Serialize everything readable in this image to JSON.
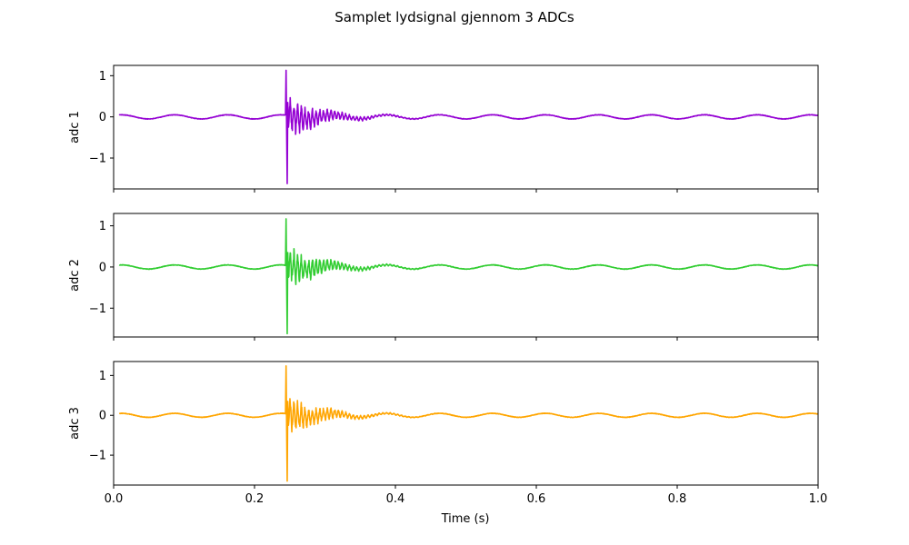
{
  "chart_data": {
    "type": "line",
    "title": "Samplet lydsignal gjennom 3 ADCs",
    "xlabel": "Time (s)",
    "xlim": [
      0.0,
      1.0
    ],
    "xticks": [
      0.0,
      0.2,
      0.4,
      0.6,
      0.8,
      1.0
    ],
    "xtick_labels": [
      "0.0",
      "0.2",
      "0.4",
      "0.6",
      "0.8",
      "1.0"
    ],
    "signal_shape": {
      "start_time": 0.008,
      "baseline_frequency_hz": 13.3,
      "baseline_amplitude": 0.05,
      "transient_time": 0.244,
      "transient_decay_s": 0.045,
      "transient_oscillation_hz": 190
    },
    "panels": [
      {
        "ylabel": "adc 1",
        "color": "#9400D3",
        "ylim": [
          -1.75,
          1.25
        ],
        "yticks": [
          1,
          0,
          -1
        ],
        "ytick_labels": [
          "1",
          "0",
          "−1"
        ],
        "transient_peak_max": 1.13,
        "transient_peak_min": -1.62
      },
      {
        "ylabel": "adc 2",
        "color": "#32CD32",
        "ylim": [
          -1.7,
          1.3
        ],
        "yticks": [
          1,
          0,
          -1
        ],
        "ytick_labels": [
          "1",
          "0",
          "−1"
        ],
        "transient_peak_max": 1.17,
        "transient_peak_min": -1.62
      },
      {
        "ylabel": "adc 3",
        "color": "#FFA500",
        "ylim": [
          -1.75,
          1.35
        ],
        "yticks": [
          1,
          0,
          -1
        ],
        "ytick_labels": [
          "1",
          "0",
          "−1"
        ],
        "transient_peak_max": 1.24,
        "transient_peak_min": -1.65
      }
    ]
  }
}
